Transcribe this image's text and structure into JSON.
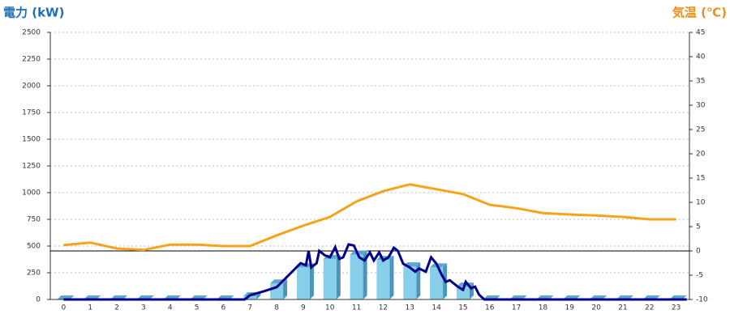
{
  "chart_data": {
    "type": "bar",
    "title": "電力 (kW)",
    "y2_title": "気温 (℃)",
    "categories": [
      "0",
      "1",
      "2",
      "3",
      "4",
      "5",
      "6",
      "7",
      "8",
      "9",
      "10",
      "11",
      "12",
      "13",
      "14",
      "15",
      "16",
      "17",
      "18",
      "19",
      "20",
      "21",
      "22",
      "23"
    ],
    "values": [
      0,
      0,
      0,
      0,
      0,
      0,
      0,
      30,
      150,
      300,
      380,
      420,
      370,
      310,
      300,
      120,
      0,
      0,
      0,
      0,
      0,
      0,
      0,
      0
    ],
    "color": "#87ceeb",
    "xlim": [
      -0.5,
      23.5
    ],
    "ylim": [
      0,
      2500
    ],
    "yticks": [
      0,
      250,
      500,
      750,
      1000,
      1250,
      1500,
      1750,
      2000,
      2250,
      2500
    ],
    "y2lim": [
      -10,
      45
    ],
    "y2ticks": [
      -10,
      -5,
      0,
      5,
      10,
      15,
      20,
      25,
      30,
      35,
      40,
      45
    ],
    "grid": true,
    "power_line": {
      "color": "#00008b",
      "x": [
        0,
        6.8,
        7,
        7.5,
        8,
        8.3,
        8.6,
        8.9,
        9.1,
        9.2,
        9.3,
        9.5,
        9.6,
        9.8,
        10,
        10.2,
        10.35,
        10.5,
        10.7,
        10.9,
        11.1,
        11.3,
        11.5,
        11.65,
        11.85,
        12,
        12.2,
        12.4,
        12.55,
        12.75,
        13,
        13.2,
        13.35,
        13.6,
        13.8,
        14,
        14.2,
        14.35,
        14.5,
        14.8,
        15,
        15.1,
        15.3,
        15.45,
        15.6,
        15.8,
        23.4
      ],
      "values": [
        0,
        0,
        40,
        75,
        115,
        190,
        265,
        340,
        320,
        455,
        300,
        340,
        455,
        415,
        395,
        490,
        380,
        395,
        515,
        505,
        395,
        365,
        440,
        365,
        440,
        365,
        395,
        485,
        455,
        335,
        300,
        260,
        290,
        260,
        395,
        335,
        230,
        165,
        180,
        120,
        90,
        165,
        105,
        120,
        45,
        0,
        0
      ]
    },
    "temperature": {
      "color": "#f5a31a",
      "axis": "y2",
      "values": [
        1.2,
        1.7,
        0.5,
        0.2,
        1.3,
        1.3,
        1.0,
        1.0,
        3.2,
        5.2,
        7,
        10.2,
        12.3,
        13.7,
        12.7,
        11.7,
        9.5,
        8.8,
        7.8,
        7.5,
        7.3,
        7,
        6.5,
        6.5
      ]
    }
  }
}
